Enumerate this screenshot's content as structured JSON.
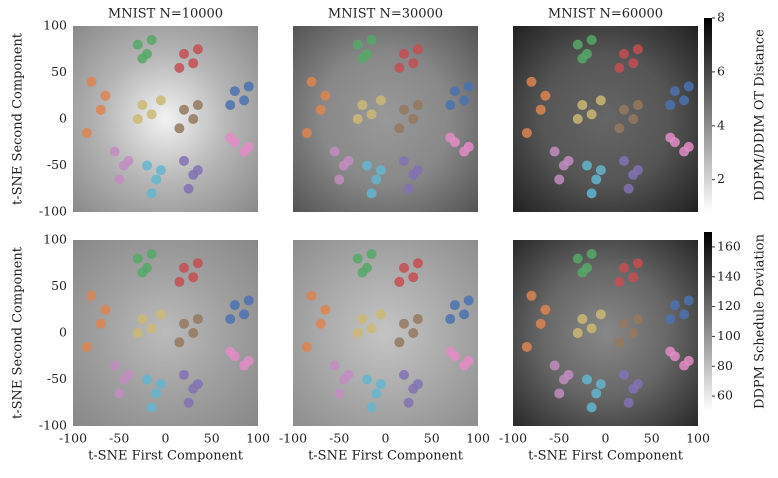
{
  "chart_data": [
    {
      "type": "scatter",
      "title": "MNIST N=10000",
      "ylabel": "t-SNE Second Component",
      "xlim": [
        -100,
        100
      ],
      "ylim": [
        -100,
        100
      ],
      "yticks": [
        -100,
        -50,
        0,
        50,
        100
      ],
      "series": [
        {
          "color": "#dd8452",
          "x": [
            -80,
            -70,
            -85,
            -65
          ],
          "y": [
            40,
            10,
            -15,
            25
          ]
        },
        {
          "color": "#55a868",
          "x": [
            -30,
            -20,
            -25,
            -15
          ],
          "y": [
            80,
            70,
            65,
            85
          ]
        },
        {
          "color": "#c44e52",
          "x": [
            20,
            30,
            15,
            35
          ],
          "y": [
            70,
            60,
            55,
            75
          ]
        },
        {
          "color": "#4c72b0",
          "x": [
            75,
            85,
            70,
            90
          ],
          "y": [
            30,
            20,
            15,
            35
          ]
        },
        {
          "color": "#ccb974",
          "x": [
            -25,
            -15,
            -30,
            -5
          ],
          "y": [
            15,
            5,
            0,
            20
          ]
        },
        {
          "color": "#937860",
          "x": [
            20,
            30,
            15,
            35
          ],
          "y": [
            10,
            0,
            -10,
            15
          ]
        },
        {
          "color": "#c28dc0",
          "x": [
            -55,
            -45,
            -50,
            -40
          ],
          "y": [
            -35,
            -50,
            -65,
            -45
          ]
        },
        {
          "color": "#64b5cd",
          "x": [
            -20,
            -10,
            -15,
            -5
          ],
          "y": [
            -50,
            -65,
            -80,
            -55
          ]
        },
        {
          "color": "#8172b3",
          "x": [
            20,
            30,
            25,
            35
          ],
          "y": [
            -45,
            -60,
            -75,
            -55
          ]
        },
        {
          "color": "#e38cc4",
          "x": [
            75,
            85,
            90,
            70
          ],
          "y": [
            -25,
            -35,
            -30,
            -20
          ]
        }
      ]
    },
    {
      "type": "scatter",
      "title": "MNIST N=30000",
      "xlim": [
        -100,
        100
      ],
      "ylim": [
        -100,
        100
      ],
      "series": [
        {
          "color": "#dd8452",
          "x": [
            -80,
            -70,
            -85,
            -65
          ],
          "y": [
            40,
            10,
            -15,
            25
          ]
        },
        {
          "color": "#55a868",
          "x": [
            -30,
            -20,
            -25,
            -15
          ],
          "y": [
            80,
            70,
            65,
            85
          ]
        },
        {
          "color": "#c44e52",
          "x": [
            20,
            30,
            15,
            35
          ],
          "y": [
            70,
            60,
            55,
            75
          ]
        },
        {
          "color": "#4c72b0",
          "x": [
            75,
            85,
            70,
            90
          ],
          "y": [
            30,
            20,
            15,
            35
          ]
        },
        {
          "color": "#ccb974",
          "x": [
            -25,
            -15,
            -30,
            -5
          ],
          "y": [
            15,
            5,
            0,
            20
          ]
        },
        {
          "color": "#937860",
          "x": [
            20,
            30,
            15,
            35
          ],
          "y": [
            10,
            0,
            -10,
            15
          ]
        },
        {
          "color": "#c28dc0",
          "x": [
            -55,
            -45,
            -50,
            -40
          ],
          "y": [
            -35,
            -50,
            -65,
            -45
          ]
        },
        {
          "color": "#64b5cd",
          "x": [
            -20,
            -10,
            -15,
            -5
          ],
          "y": [
            -50,
            -65,
            -80,
            -55
          ]
        },
        {
          "color": "#8172b3",
          "x": [
            20,
            30,
            25,
            35
          ],
          "y": [
            -45,
            -60,
            -75,
            -55
          ]
        },
        {
          "color": "#e38cc4",
          "x": [
            75,
            85,
            90,
            70
          ],
          "y": [
            -25,
            -35,
            -30,
            -20
          ]
        }
      ]
    },
    {
      "type": "scatter",
      "title": "MNIST N=60000",
      "xlim": [
        -100,
        100
      ],
      "ylim": [
        -100,
        100
      ],
      "colorbar": {
        "label": "DDPM/DDIM OT Distance",
        "lim": [
          0.8,
          8
        ],
        "ticks": [
          2,
          4,
          6,
          8
        ]
      },
      "series": [
        {
          "color": "#dd8452",
          "x": [
            -80,
            -70,
            -85,
            -65
          ],
          "y": [
            40,
            10,
            -15,
            25
          ]
        },
        {
          "color": "#55a868",
          "x": [
            -30,
            -20,
            -25,
            -15
          ],
          "y": [
            80,
            70,
            65,
            85
          ]
        },
        {
          "color": "#c44e52",
          "x": [
            20,
            30,
            15,
            35
          ],
          "y": [
            70,
            60,
            55,
            75
          ]
        },
        {
          "color": "#4c72b0",
          "x": [
            75,
            85,
            70,
            90
          ],
          "y": [
            30,
            20,
            15,
            35
          ]
        },
        {
          "color": "#ccb974",
          "x": [
            -25,
            -15,
            -30,
            -5
          ],
          "y": [
            15,
            5,
            0,
            20
          ]
        },
        {
          "color": "#937860",
          "x": [
            20,
            30,
            15,
            35
          ],
          "y": [
            10,
            0,
            -10,
            15
          ]
        },
        {
          "color": "#c28dc0",
          "x": [
            -55,
            -45,
            -50,
            -40
          ],
          "y": [
            -35,
            -50,
            -65,
            -45
          ]
        },
        {
          "color": "#64b5cd",
          "x": [
            -20,
            -10,
            -15,
            -5
          ],
          "y": [
            -50,
            -65,
            -80,
            -55
          ]
        },
        {
          "color": "#8172b3",
          "x": [
            20,
            30,
            25,
            35
          ],
          "y": [
            -45,
            -60,
            -75,
            -55
          ]
        },
        {
          "color": "#e38cc4",
          "x": [
            75,
            85,
            90,
            70
          ],
          "y": [
            -25,
            -35,
            -30,
            -20
          ]
        }
      ]
    },
    {
      "type": "scatter",
      "xlabel": "t-SNE First Component",
      "ylabel": "t-SNE Second Component",
      "xlim": [
        -100,
        100
      ],
      "ylim": [
        -100,
        100
      ],
      "xticks": [
        -100,
        -50,
        0,
        50,
        100
      ],
      "yticks": [
        -100,
        -50,
        0,
        50,
        100
      ],
      "series": [
        {
          "color": "#dd8452",
          "x": [
            -80,
            -70,
            -85,
            -65
          ],
          "y": [
            40,
            10,
            -15,
            25
          ]
        },
        {
          "color": "#55a868",
          "x": [
            -30,
            -20,
            -25,
            -15
          ],
          "y": [
            80,
            70,
            65,
            85
          ]
        },
        {
          "color": "#c44e52",
          "x": [
            20,
            30,
            15,
            35
          ],
          "y": [
            70,
            60,
            55,
            75
          ]
        },
        {
          "color": "#4c72b0",
          "x": [
            75,
            85,
            70,
            90
          ],
          "y": [
            30,
            20,
            15,
            35
          ]
        },
        {
          "color": "#ccb974",
          "x": [
            -25,
            -15,
            -30,
            -5
          ],
          "y": [
            15,
            5,
            0,
            20
          ]
        },
        {
          "color": "#937860",
          "x": [
            20,
            30,
            15,
            35
          ],
          "y": [
            10,
            0,
            -10,
            15
          ]
        },
        {
          "color": "#c28dc0",
          "x": [
            -55,
            -45,
            -50,
            -40
          ],
          "y": [
            -35,
            -50,
            -65,
            -45
          ]
        },
        {
          "color": "#64b5cd",
          "x": [
            -20,
            -10,
            -15,
            -5
          ],
          "y": [
            -50,
            -65,
            -80,
            -55
          ]
        },
        {
          "color": "#8172b3",
          "x": [
            20,
            30,
            25,
            35
          ],
          "y": [
            -45,
            -60,
            -75,
            -55
          ]
        },
        {
          "color": "#e38cc4",
          "x": [
            75,
            85,
            90,
            70
          ],
          "y": [
            -25,
            -35,
            -30,
            -20
          ]
        }
      ]
    },
    {
      "type": "scatter",
      "xlabel": "t-SNE First Component",
      "xlim": [
        -100,
        100
      ],
      "ylim": [
        -100,
        100
      ],
      "xticks": [
        -100,
        -50,
        0,
        50,
        100
      ],
      "series": [
        {
          "color": "#dd8452",
          "x": [
            -80,
            -70,
            -85,
            -65
          ],
          "y": [
            40,
            10,
            -15,
            25
          ]
        },
        {
          "color": "#55a868",
          "x": [
            -30,
            -20,
            -25,
            -15
          ],
          "y": [
            80,
            70,
            65,
            85
          ]
        },
        {
          "color": "#c44e52",
          "x": [
            20,
            30,
            15,
            35
          ],
          "y": [
            70,
            60,
            55,
            75
          ]
        },
        {
          "color": "#4c72b0",
          "x": [
            75,
            85,
            70,
            90
          ],
          "y": [
            30,
            20,
            15,
            35
          ]
        },
        {
          "color": "#ccb974",
          "x": [
            -25,
            -15,
            -30,
            -5
          ],
          "y": [
            15,
            5,
            0,
            20
          ]
        },
        {
          "color": "#937860",
          "x": [
            20,
            30,
            15,
            35
          ],
          "y": [
            10,
            0,
            -10,
            15
          ]
        },
        {
          "color": "#c28dc0",
          "x": [
            -55,
            -45,
            -50,
            -40
          ],
          "y": [
            -35,
            -50,
            -65,
            -45
          ]
        },
        {
          "color": "#64b5cd",
          "x": [
            -20,
            -10,
            -15,
            -5
          ],
          "y": [
            -50,
            -65,
            -80,
            -55
          ]
        },
        {
          "color": "#8172b3",
          "x": [
            20,
            30,
            25,
            35
          ],
          "y": [
            -45,
            -60,
            -75,
            -55
          ]
        },
        {
          "color": "#e38cc4",
          "x": [
            75,
            85,
            90,
            70
          ],
          "y": [
            -25,
            -35,
            -30,
            -20
          ]
        }
      ]
    },
    {
      "type": "scatter",
      "xlabel": "t-SNE First Component",
      "xlim": [
        -100,
        100
      ],
      "ylim": [
        -100,
        100
      ],
      "xticks": [
        -100,
        -50,
        0,
        50,
        100
      ],
      "colorbar": {
        "label": "DDPM Schedule Deviation",
        "lim": [
          50,
          170
        ],
        "ticks": [
          60,
          80,
          100,
          120,
          140,
          160
        ]
      },
      "series": [
        {
          "color": "#dd8452",
          "x": [
            -80,
            -70,
            -85,
            -65
          ],
          "y": [
            40,
            10,
            -15,
            25
          ]
        },
        {
          "color": "#55a868",
          "x": [
            -30,
            -20,
            -25,
            -15
          ],
          "y": [
            80,
            70,
            65,
            85
          ]
        },
        {
          "color": "#c44e52",
          "x": [
            20,
            30,
            15,
            35
          ],
          "y": [
            70,
            60,
            55,
            75
          ]
        },
        {
          "color": "#4c72b0",
          "x": [
            75,
            85,
            70,
            90
          ],
          "y": [
            30,
            20,
            15,
            35
          ]
        },
        {
          "color": "#ccb974",
          "x": [
            -25,
            -15,
            -30,
            -5
          ],
          "y": [
            15,
            5,
            0,
            20
          ]
        },
        {
          "color": "#937860",
          "x": [
            20,
            30,
            15,
            35
          ],
          "y": [
            10,
            0,
            -10,
            15
          ]
        },
        {
          "color": "#c28dc0",
          "x": [
            -55,
            -45,
            -50,
            -40
          ],
          "y": [
            -35,
            -50,
            -65,
            -45
          ]
        },
        {
          "color": "#64b5cd",
          "x": [
            -20,
            -10,
            -15,
            -5
          ],
          "y": [
            -50,
            -65,
            -80,
            -55
          ]
        },
        {
          "color": "#8172b3",
          "x": [
            20,
            30,
            25,
            35
          ],
          "y": [
            -45,
            -60,
            -75,
            -55
          ]
        },
        {
          "color": "#e38cc4",
          "x": [
            75,
            85,
            90,
            70
          ],
          "y": [
            -25,
            -35,
            -30,
            -20
          ]
        }
      ]
    }
  ]
}
